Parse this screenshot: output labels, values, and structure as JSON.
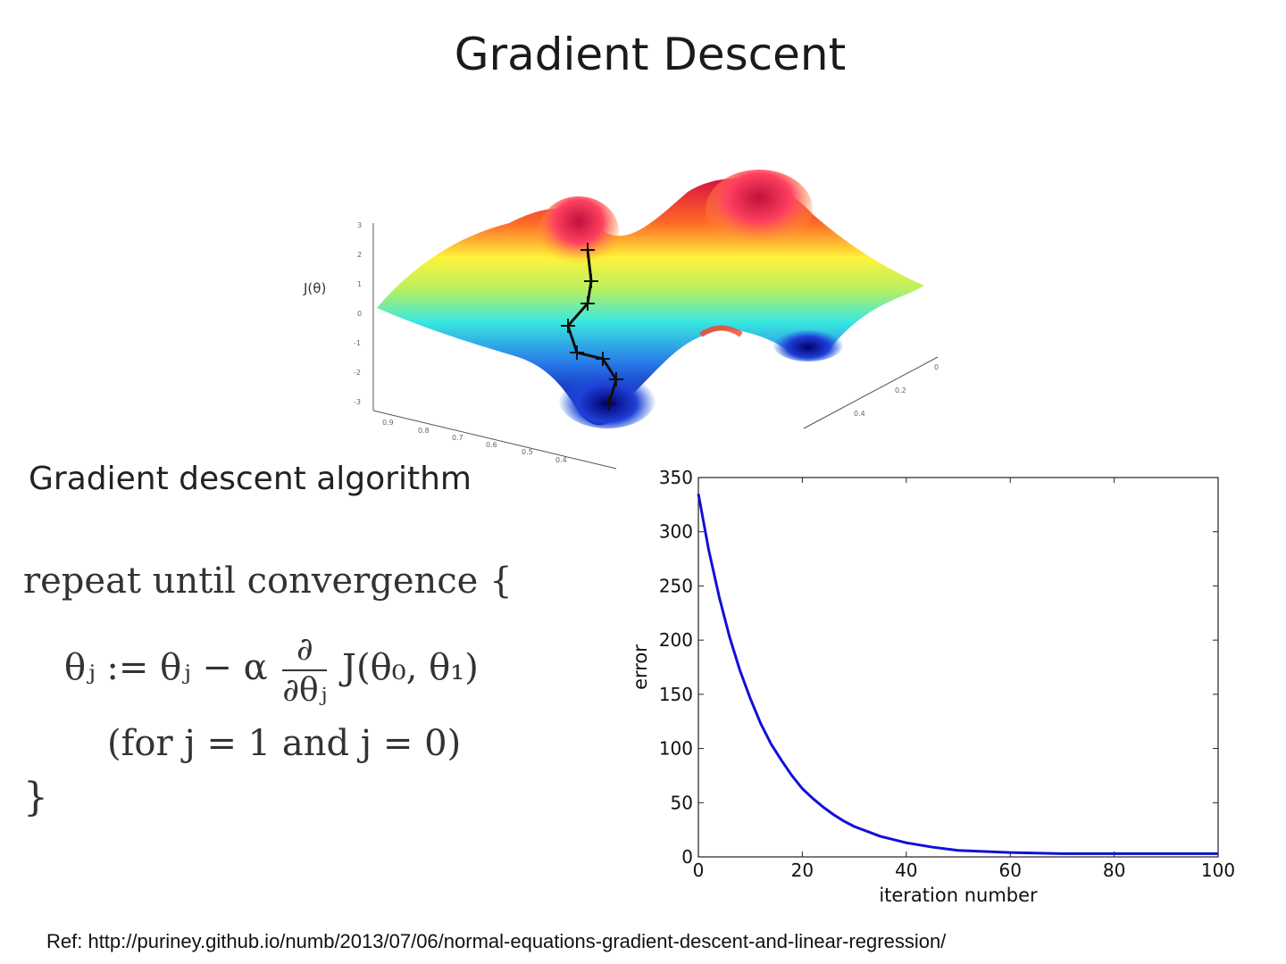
{
  "slide": {
    "title": "Gradient Descent",
    "section_heading": "Gradient descent algorithm",
    "reference": "Ref: http://puriney.github.io/numb/2013/07/06/normal-equations-gradient-descent-and-linear-regression/"
  },
  "surface_plot": {
    "zlabel": "J(θ)",
    "z_ticks": [
      "3",
      "2",
      "1",
      "0",
      "-1",
      "-2",
      "-3"
    ],
    "x_ticks": [
      "0.9",
      "0.8",
      "0.7",
      "0.6",
      "0.5",
      "0.4"
    ],
    "y_ticks": [
      "0",
      "0.2",
      "0.4"
    ]
  },
  "formula": {
    "line1": "repeat until convergence {",
    "lhs": "θⱼ := θⱼ − α",
    "frac_num": "∂",
    "frac_den": "∂θⱼ",
    "rhs": "J(θ₀, θ₁)",
    "line3": "(for j = 1 and j = 0)",
    "line4": "}"
  },
  "chart_data": {
    "type": "line",
    "title": "",
    "xlabel": "iteration number",
    "ylabel": "error",
    "xlim": [
      0,
      100
    ],
    "ylim": [
      0,
      350
    ],
    "x_ticks": [
      0,
      20,
      40,
      60,
      80,
      100
    ],
    "y_ticks": [
      0,
      50,
      100,
      150,
      200,
      250,
      300,
      350
    ],
    "grid": false,
    "series": [
      {
        "color": "#1010d8",
        "x": [
          0,
          2,
          4,
          6,
          8,
          10,
          12,
          14,
          16,
          18,
          20,
          22,
          24,
          26,
          28,
          30,
          35,
          40,
          45,
          50,
          60,
          70,
          80,
          90,
          100
        ],
        "y": [
          335,
          283,
          240,
          203,
          172,
          146,
          123,
          104,
          89,
          75,
          63,
          54,
          46,
          39,
          33,
          28,
          19,
          13,
          9,
          6,
          4,
          3,
          3,
          3,
          3
        ]
      }
    ]
  }
}
